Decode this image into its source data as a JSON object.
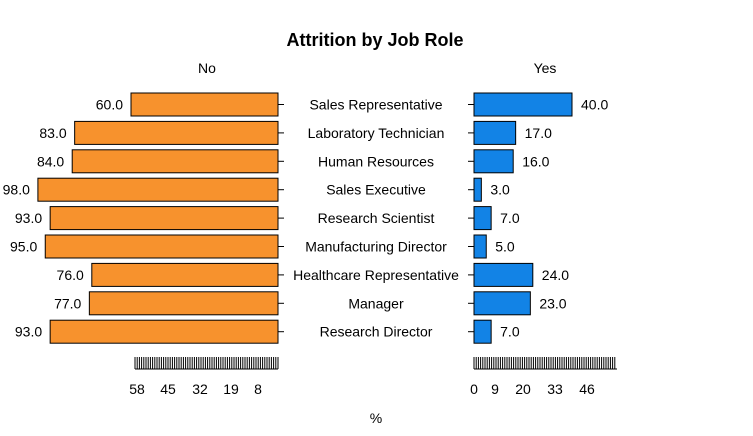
{
  "chart_data": {
    "type": "bar",
    "title": "Attrition by Job Role",
    "xlabel": "%",
    "panel_left": "No",
    "panel_right": "Yes",
    "colors": {
      "No": "#f7922d",
      "Yes": "#1283e6"
    },
    "categories": [
      "Sales Representative",
      "Laboratory Technician",
      "Human Resources",
      "Sales Executive",
      "Research Scientist",
      "Manufacturing Director",
      "Healthcare Representative",
      "Manager",
      "Research Director"
    ],
    "series": [
      {
        "name": "No",
        "values": [
          60,
          83,
          84,
          98,
          93,
          95,
          76,
          77,
          93
        ],
        "labels": [
          "60.0",
          "83.0",
          "84.0",
          "98.0",
          "93.0",
          "95.0",
          "76.0",
          "77.0",
          "93.0"
        ]
      },
      {
        "name": "Yes",
        "values": [
          40,
          17,
          16,
          3,
          7,
          5,
          24,
          23,
          7
        ],
        "labels": [
          "40.0",
          "17.0",
          "16.0",
          "3.0",
          "7.0",
          "5.0",
          "24.0",
          "23.0",
          "7.0"
        ]
      }
    ],
    "left_axis_ticks": [
      "58",
      "45",
      "32",
      "19",
      "8"
    ],
    "right_axis_ticks": [
      "0",
      "9",
      "20",
      "33",
      "46"
    ]
  }
}
